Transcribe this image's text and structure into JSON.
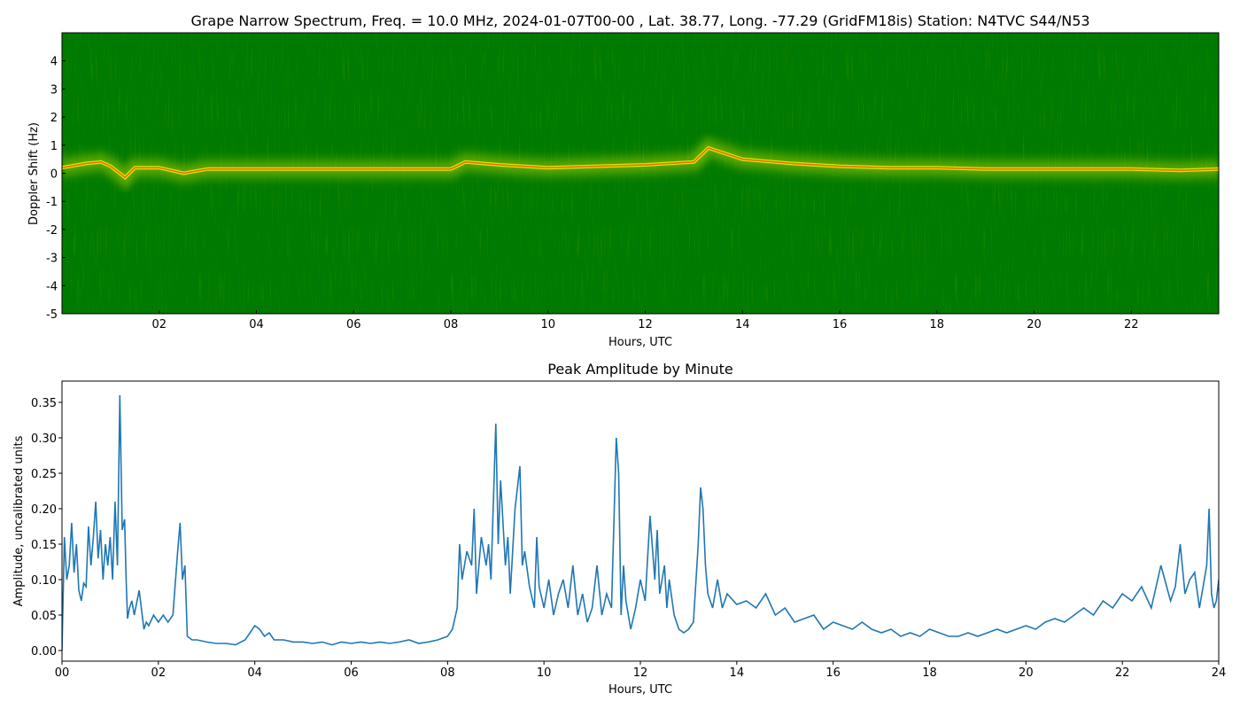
{
  "chart_data": [
    {
      "type": "heatmap",
      "title": "Grape Narrow Spectrum, Freq. = 10.0 MHz, 2024-01-07T00-00 , Lat.  38.77, Long. -77.29 (GridFM18is) Station: N4TVC S44/N53",
      "xlabel": "Hours, UTC",
      "ylabel": "Doppler Shift (Hz)",
      "xlim": [
        0,
        23.8
      ],
      "ylim": [
        -5,
        5
      ],
      "x_ticks": [
        2,
        4,
        6,
        8,
        10,
        12,
        14,
        16,
        18,
        20,
        22
      ],
      "x_tick_labels": [
        "02",
        "04",
        "06",
        "08",
        "10",
        "12",
        "14",
        "16",
        "18",
        "20",
        "22"
      ],
      "y_ticks": [
        -5,
        -4,
        -3,
        -2,
        -1,
        0,
        1,
        2,
        3,
        4
      ],
      "y_tick_labels": [
        "-5",
        "-4",
        "-3",
        "-2",
        "-1",
        "0",
        "1",
        "2",
        "3",
        "4"
      ],
      "colors": {
        "background": "#007a00",
        "mid": "#d8e600",
        "high": "#ff3300"
      },
      "carrier_trace": {
        "x": [
          0.0,
          0.5,
          0.8,
          1.0,
          1.3,
          1.5,
          2.0,
          2.5,
          3.0,
          4.0,
          5.0,
          6.0,
          7.0,
          8.0,
          8.3,
          9.0,
          10.0,
          11.0,
          12.0,
          12.5,
          13.0,
          13.3,
          14.0,
          15.0,
          16.0,
          17.0,
          18.0,
          19.0,
          20.0,
          21.0,
          22.0,
          23.0,
          23.8
        ],
        "y": [
          0.2,
          0.35,
          0.4,
          0.25,
          -0.15,
          0.2,
          0.2,
          0.0,
          0.15,
          0.15,
          0.15,
          0.15,
          0.15,
          0.15,
          0.4,
          0.3,
          0.2,
          0.25,
          0.3,
          0.35,
          0.4,
          0.9,
          0.5,
          0.35,
          0.25,
          0.2,
          0.2,
          0.15,
          0.15,
          0.15,
          0.15,
          0.1,
          0.15
        ]
      }
    },
    {
      "type": "line",
      "title": "Peak Amplitude by Minute",
      "xlabel": "Hours, UTC",
      "ylabel": "Amplitude, uncalibrated units",
      "xlim": [
        0,
        24
      ],
      "ylim": [
        -0.015,
        0.38
      ],
      "x_ticks": [
        0,
        2,
        4,
        6,
        8,
        10,
        12,
        14,
        16,
        18,
        20,
        22,
        24
      ],
      "x_tick_labels": [
        "00",
        "02",
        "04",
        "06",
        "08",
        "10",
        "12",
        "14",
        "16",
        "18",
        "20",
        "22",
        "24"
      ],
      "y_ticks": [
        0,
        0.05,
        0.1,
        0.15,
        0.2,
        0.25,
        0.3,
        0.35
      ],
      "y_tick_labels": [
        "0.00",
        "0.05",
        "0.10",
        "0.15",
        "0.20",
        "0.25",
        "0.30",
        "0.35"
      ],
      "line_color": "#1f77b4",
      "series": [
        {
          "x": [
            0.0,
            0.05,
            0.1,
            0.15,
            0.2,
            0.25,
            0.3,
            0.35,
            0.4,
            0.45,
            0.5,
            0.55,
            0.6,
            0.65,
            0.7,
            0.75,
            0.8,
            0.85,
            0.9,
            0.95,
            1.0,
            1.05,
            1.1,
            1.15,
            1.2,
            1.25,
            1.3,
            1.33,
            1.36,
            1.4,
            1.45,
            1.5,
            1.6,
            1.7,
            1.75,
            1.8,
            1.9,
            2.0,
            2.1,
            2.2,
            2.3,
            2.4,
            2.45,
            2.5,
            2.55,
            2.6,
            2.7,
            2.8,
            3.0,
            3.2,
            3.4,
            3.6,
            3.8,
            4.0,
            4.1,
            4.2,
            4.3,
            4.4,
            4.6,
            4.8,
            5.0,
            5.2,
            5.4,
            5.6,
            5.8,
            6.0,
            6.2,
            6.4,
            6.6,
            6.8,
            7.0,
            7.2,
            7.4,
            7.6,
            7.8,
            8.0,
            8.1,
            8.2,
            8.25,
            8.3,
            8.4,
            8.5,
            8.55,
            8.6,
            8.7,
            8.8,
            8.85,
            8.9,
            9.0,
            9.05,
            9.1,
            9.2,
            9.25,
            9.3,
            9.4,
            9.5,
            9.55,
            9.6,
            9.7,
            9.8,
            9.85,
            9.9,
            10.0,
            10.1,
            10.2,
            10.3,
            10.4,
            10.5,
            10.6,
            10.7,
            10.8,
            10.9,
            11.0,
            11.1,
            11.2,
            11.3,
            11.4,
            11.5,
            11.55,
            11.6,
            11.65,
            11.7,
            11.8,
            11.9,
            12.0,
            12.1,
            12.2,
            12.3,
            12.35,
            12.4,
            12.5,
            12.55,
            12.6,
            12.7,
            12.8,
            12.9,
            13.0,
            13.1,
            13.2,
            13.25,
            13.3,
            13.35,
            13.4,
            13.5,
            13.6,
            13.7,
            13.8,
            14.0,
            14.2,
            14.4,
            14.6,
            14.8,
            15.0,
            15.2,
            15.4,
            15.6,
            15.8,
            16.0,
            16.2,
            16.4,
            16.6,
            16.8,
            17.0,
            17.2,
            17.4,
            17.6,
            17.8,
            18.0,
            18.2,
            18.4,
            18.6,
            18.8,
            19.0,
            19.2,
            19.4,
            19.6,
            19.8,
            20.0,
            20.2,
            20.4,
            20.6,
            20.8,
            21.0,
            21.2,
            21.4,
            21.6,
            21.8,
            22.0,
            22.2,
            22.4,
            22.6,
            22.8,
            23.0,
            23.1,
            23.2,
            23.3,
            23.4,
            23.5,
            23.6,
            23.7,
            23.75,
            23.8,
            23.85,
            23.9,
            23.95,
            24.0
          ],
          "values": [
            0.0,
            0.16,
            0.1,
            0.12,
            0.18,
            0.11,
            0.15,
            0.085,
            0.07,
            0.095,
            0.09,
            0.175,
            0.12,
            0.16,
            0.21,
            0.13,
            0.17,
            0.1,
            0.15,
            0.12,
            0.16,
            0.1,
            0.21,
            0.12,
            0.36,
            0.17,
            0.185,
            0.1,
            0.045,
            0.06,
            0.07,
            0.05,
            0.085,
            0.03,
            0.04,
            0.035,
            0.05,
            0.04,
            0.05,
            0.04,
            0.05,
            0.14,
            0.18,
            0.1,
            0.12,
            0.02,
            0.015,
            0.015,
            0.012,
            0.01,
            0.01,
            0.008,
            0.015,
            0.035,
            0.03,
            0.02,
            0.025,
            0.015,
            0.015,
            0.012,
            0.012,
            0.01,
            0.012,
            0.008,
            0.012,
            0.01,
            0.012,
            0.01,
            0.012,
            0.01,
            0.012,
            0.015,
            0.01,
            0.012,
            0.015,
            0.02,
            0.03,
            0.06,
            0.15,
            0.1,
            0.14,
            0.12,
            0.2,
            0.08,
            0.16,
            0.12,
            0.15,
            0.1,
            0.32,
            0.15,
            0.24,
            0.12,
            0.16,
            0.08,
            0.2,
            0.26,
            0.12,
            0.14,
            0.09,
            0.06,
            0.16,
            0.09,
            0.06,
            0.1,
            0.05,
            0.08,
            0.1,
            0.06,
            0.12,
            0.05,
            0.08,
            0.04,
            0.06,
            0.12,
            0.05,
            0.08,
            0.06,
            0.3,
            0.25,
            0.05,
            0.12,
            0.07,
            0.03,
            0.06,
            0.1,
            0.07,
            0.19,
            0.1,
            0.17,
            0.08,
            0.12,
            0.06,
            0.1,
            0.05,
            0.03,
            0.025,
            0.03,
            0.04,
            0.15,
            0.23,
            0.2,
            0.12,
            0.08,
            0.06,
            0.1,
            0.06,
            0.08,
            0.065,
            0.07,
            0.06,
            0.08,
            0.05,
            0.06,
            0.04,
            0.045,
            0.05,
            0.03,
            0.04,
            0.035,
            0.03,
            0.04,
            0.03,
            0.025,
            0.03,
            0.02,
            0.025,
            0.02,
            0.03,
            0.025,
            0.02,
            0.02,
            0.025,
            0.02,
            0.025,
            0.03,
            0.025,
            0.03,
            0.035,
            0.03,
            0.04,
            0.045,
            0.04,
            0.05,
            0.06,
            0.05,
            0.07,
            0.06,
            0.08,
            0.07,
            0.09,
            0.06,
            0.12,
            0.07,
            0.09,
            0.15,
            0.08,
            0.1,
            0.11,
            0.06,
            0.1,
            0.12,
            0.2,
            0.08,
            0.06,
            0.07,
            0.1
          ]
        }
      ]
    }
  ]
}
